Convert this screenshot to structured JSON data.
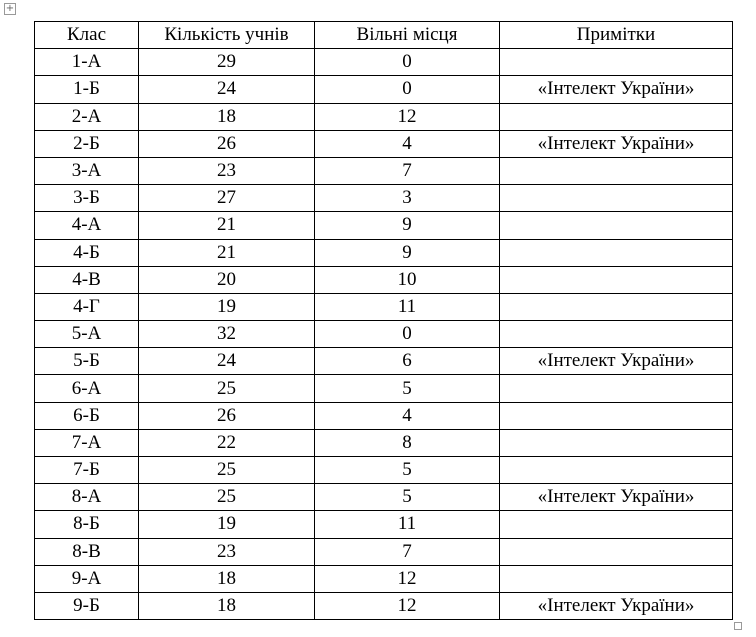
{
  "table": {
    "header": [
      "Клас",
      "Кількість учнів",
      "Вільні місця",
      "Примітки"
    ],
    "rows": [
      [
        "1-А",
        29,
        0
      ],
      [
        "1-Б",
        24,
        0,
        "«Інтелект України»"
      ],
      [
        "2-А",
        18,
        12
      ],
      [
        "2-Б",
        26,
        4,
        "«Інтелект України»"
      ],
      [
        "3-А",
        23,
        7
      ],
      [
        "3-Б",
        27,
        3
      ],
      [
        "4-А",
        21,
        9
      ],
      [
        "4-Б",
        21,
        9
      ],
      [
        "4-В",
        20,
        10
      ],
      [
        "4-Г",
        19,
        11
      ],
      [
        "5-А",
        32,
        0
      ],
      [
        "5-Б",
        24,
        6,
        "«Інтелект України»"
      ],
      [
        "6-А",
        25,
        5
      ],
      [
        "6-Б",
        26,
        4
      ],
      [
        "7-А",
        22,
        8
      ],
      [
        "7-Б",
        25,
        5
      ],
      [
        "8-А",
        25,
        5,
        "«Інтелект України»"
      ],
      [
        "8-Б",
        19,
        11
      ],
      [
        "8-В",
        23,
        7
      ],
      [
        "9-А",
        18,
        12
      ],
      [
        "9-Б",
        18,
        12,
        "«Інтелект України»"
      ]
    ]
  }
}
